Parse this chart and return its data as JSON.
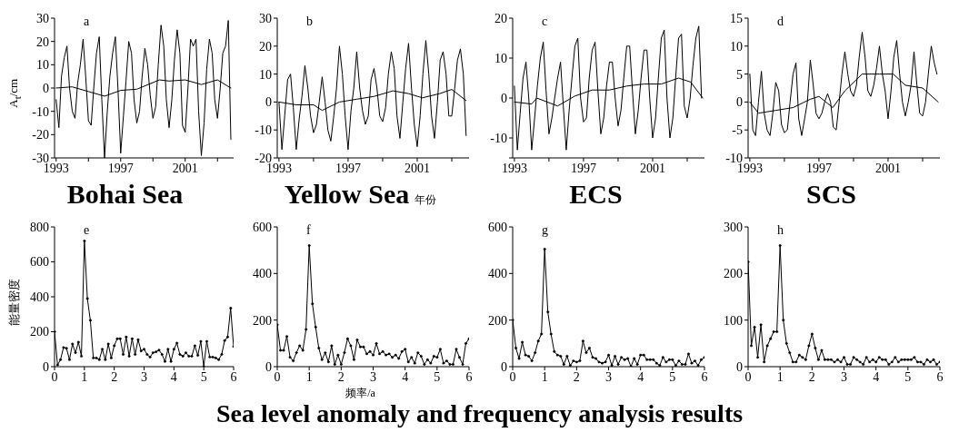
{
  "chart_data": [
    {
      "type": "line",
      "title": "Bohai Sea",
      "ylabel": "A$_{t}$/cm",
      "annotations": [
        "a"
      ],
      "marker": "none",
      "line_style": "solid",
      "grid": false,
      "xlim": [
        1992.9,
        2004.0
      ],
      "xticks": [
        1993,
        {
          "value": 1995,
          "label": null
        },
        1997,
        {
          "value": 1999,
          "label": null
        },
        2001,
        {
          "value": 2003,
          "label": null
        }
      ],
      "ylim": [
        -30,
        30
      ],
      "yticks": [
        -30,
        -20,
        -10,
        0,
        10,
        20,
        30
      ],
      "x": [
        1993.0,
        1993.17,
        1993.33,
        1993.5,
        1993.67,
        1993.83,
        1994.0,
        1994.17,
        1994.33,
        1994.5,
        1994.67,
        1994.83,
        1995.0,
        1995.17,
        1995.33,
        1995.5,
        1995.67,
        1995.83,
        1996.0,
        1996.17,
        1996.33,
        1996.5,
        1996.67,
        1996.83,
        1997.0,
        1997.17,
        1997.33,
        1997.5,
        1997.67,
        1997.83,
        1998.0,
        1998.17,
        1998.33,
        1998.5,
        1998.67,
        1998.83,
        1999.0,
        1999.17,
        1999.33,
        1999.5,
        1999.67,
        1999.83,
        2000.0,
        2000.17,
        2000.33,
        2000.5,
        2000.67,
        2000.83,
        2001.0,
        2001.17,
        2001.33,
        2001.5,
        2001.67,
        2001.83,
        2002.0,
        2002.17,
        2002.33,
        2002.5,
        2002.67,
        2002.83,
        2003.0,
        2003.17,
        2003.33,
        2003.5,
        2003.67,
        2003.83
      ],
      "series": [
        {
          "color": "#000000",
          "values": [
            -5,
            -17,
            5,
            13,
            18,
            0,
            -10,
            -13,
            2,
            10,
            21,
            5,
            -14,
            -16,
            0,
            15,
            22,
            -5,
            -30,
            -10,
            5,
            15,
            22,
            0,
            -28,
            -12,
            3,
            20,
            15,
            -5,
            -15,
            -10,
            5,
            17,
            10,
            -3,
            -13,
            -8,
            10,
            27,
            18,
            -5,
            -17,
            -5,
            12,
            25,
            15,
            -16,
            -19,
            0,
            21,
            18,
            21,
            -10,
            -29,
            -15,
            8,
            21,
            15,
            -5,
            -13,
            0,
            15,
            18,
            29,
            -22
          ]
        },
        {
          "type": "line",
          "color": "#000000",
          "x": [
            1993,
            1994,
            1995,
            1996,
            1997,
            1998,
            1999.4,
            2000,
            2001,
            2002,
            2003,
            2003.83
          ],
          "values": [
            0,
            0.5,
            -1.5,
            -3.5,
            -1,
            -0.5,
            3.5,
            3,
            3.5,
            1.5,
            3.5,
            0
          ]
        }
      ]
    },
    {
      "type": "line",
      "title": "Yellow Sea",
      "xlabel": "年份",
      "annotations": [
        "b"
      ],
      "marker": "none",
      "line_style": "solid",
      "grid": false,
      "xlim": [
        1992.9,
        2004.0
      ],
      "xticks": [
        1993,
        {
          "value": 1995,
          "label": null
        },
        1997,
        {
          "value": 1999,
          "label": null
        },
        2001,
        {
          "value": 2003,
          "label": null
        }
      ],
      "ylim": [
        -20,
        30
      ],
      "yticks": [
        -20,
        -10,
        0,
        10,
        20,
        30
      ],
      "x": [
        1993.0,
        1993.17,
        1993.33,
        1993.5,
        1993.67,
        1993.83,
        1994.0,
        1994.17,
        1994.33,
        1994.5,
        1994.67,
        1994.83,
        1995.0,
        1995.17,
        1995.33,
        1995.5,
        1995.67,
        1995.83,
        1996.0,
        1996.17,
        1996.33,
        1996.5,
        1996.67,
        1996.83,
        1997.0,
        1997.17,
        1997.33,
        1997.5,
        1997.67,
        1997.83,
        1998.0,
        1998.17,
        1998.33,
        1998.5,
        1998.67,
        1998.83,
        1999.0,
        1999.17,
        1999.33,
        1999.5,
        1999.67,
        1999.83,
        2000.0,
        2000.17,
        2000.33,
        2000.5,
        2000.67,
        2000.83,
        2001.0,
        2001.17,
        2001.33,
        2001.5,
        2001.67,
        2001.83,
        2002.0,
        2002.17,
        2002.33,
        2002.5,
        2002.67,
        2002.83,
        2003.0,
        2003.17,
        2003.33,
        2003.5,
        2003.67,
        2003.83
      ],
      "series": [
        {
          "color": "#000000",
          "values": [
            0,
            -17,
            -5,
            8,
            10,
            -2,
            -17,
            -6,
            2,
            13,
            5,
            -5,
            -11,
            -8,
            0,
            9,
            0,
            -10,
            -14,
            -5,
            5,
            20,
            10,
            -5,
            -17,
            -3,
            5,
            18,
            5,
            -3,
            -8,
            -5,
            8,
            12,
            5,
            -5,
            -7,
            -2,
            10,
            18,
            12,
            -5,
            -13,
            0,
            12,
            21,
            5,
            -8,
            -16,
            -5,
            10,
            22,
            10,
            -5,
            -13,
            0,
            15,
            18,
            10,
            -5,
            -5,
            5,
            15,
            19,
            10,
            -12
          ]
        },
        {
          "type": "line",
          "color": "#000000",
          "x": [
            1993,
            1994,
            1995,
            1995.5,
            1996.5,
            1997.5,
            1998.5,
            1999.6,
            2000.5,
            2001.3,
            2002.3,
            2003,
            2003.83
          ],
          "values": [
            0,
            -1,
            -1,
            -3,
            0,
            1,
            2,
            4,
            3,
            1.5,
            3,
            4.5,
            0.5
          ]
        }
      ]
    },
    {
      "type": "line",
      "title": "ECS",
      "annotations": [
        "c"
      ],
      "marker": "none",
      "line_style": "solid",
      "grid": false,
      "xlim": [
        1992.9,
        2004.0
      ],
      "xticks": [
        1993,
        {
          "value": 1995,
          "label": null
        },
        1997,
        {
          "value": 1999,
          "label": null
        },
        2001,
        {
          "value": 2003,
          "label": null
        }
      ],
      "ylim": [
        -15,
        20
      ],
      "yticks": [
        {
          "value": -15,
          "label": null
        },
        -10,
        0,
        10,
        20
      ],
      "x": [
        1993.0,
        1993.17,
        1993.33,
        1993.5,
        1993.67,
        1993.83,
        1994.0,
        1994.17,
        1994.33,
        1994.5,
        1994.67,
        1994.83,
        1995.0,
        1995.17,
        1995.33,
        1995.5,
        1995.67,
        1995.83,
        1996.0,
        1996.17,
        1996.33,
        1996.5,
        1996.67,
        1996.83,
        1997.0,
        1997.17,
        1997.33,
        1997.5,
        1997.67,
        1997.83,
        1998.0,
        1998.17,
        1998.33,
        1998.5,
        1998.67,
        1998.83,
        1999.0,
        1999.17,
        1999.33,
        1999.5,
        1999.67,
        1999.83,
        2000.0,
        2000.17,
        2000.33,
        2000.5,
        2000.67,
        2000.83,
        2001.0,
        2001.17,
        2001.33,
        2001.5,
        2001.67,
        2001.83,
        2002.0,
        2002.17,
        2002.33,
        2002.5,
        2002.67,
        2002.83,
        2003.0,
        2003.17,
        2003.33,
        2003.5,
        2003.67,
        2003.83
      ],
      "series": [
        {
          "color": "#000000",
          "values": [
            3,
            -13,
            -4,
            5,
            9,
            0,
            -13,
            -5,
            3,
            10,
            14,
            2,
            -9,
            -5,
            0,
            5,
            9,
            -2,
            -13,
            -3,
            5,
            13,
            15,
            0,
            -6,
            -5,
            5,
            12,
            14,
            2,
            -9,
            -5,
            3,
            9,
            9,
            0,
            -7,
            -3,
            5,
            13,
            13,
            2,
            -9,
            -3,
            5,
            12,
            12,
            0,
            -10,
            -5,
            5,
            15,
            17,
            0,
            -10,
            -5,
            5,
            15,
            16,
            -2,
            -5,
            0,
            8,
            15,
            18,
            0
          ]
        },
        {
          "type": "line",
          "color": "#000000",
          "x": [
            1993,
            1994,
            1994.3,
            1995.5,
            1996.5,
            1997.5,
            1998.5,
            1999.5,
            2000.5,
            2001.5,
            2002.5,
            2003.2,
            2003.9
          ],
          "values": [
            -1,
            -1.5,
            0,
            -2,
            0.5,
            2,
            2,
            3,
            3.5,
            3.5,
            5,
            4,
            0
          ]
        }
      ]
    },
    {
      "type": "line",
      "title": "SCS",
      "annotations": [
        "d"
      ],
      "marker": "none",
      "line_style": "solid",
      "grid": false,
      "xlim": [
        1992.9,
        2004.0
      ],
      "xticks": [
        1993,
        {
          "value": 1995,
          "label": null
        },
        1997,
        {
          "value": 1999,
          "label": null
        },
        2001,
        {
          "value": 2003,
          "label": null
        }
      ],
      "ylim": [
        -10,
        15
      ],
      "yticks": [
        -10,
        -5,
        0,
        5,
        10,
        15
      ],
      "x": [
        1993.0,
        1993.17,
        1993.33,
        1993.5,
        1993.67,
        1993.83,
        1994.0,
        1994.17,
        1994.33,
        1994.5,
        1994.67,
        1994.83,
        1995.0,
        1995.17,
        1995.33,
        1995.5,
        1995.67,
        1995.83,
        1996.0,
        1996.17,
        1996.33,
        1996.5,
        1996.67,
        1996.83,
        1997.0,
        1997.17,
        1997.33,
        1997.5,
        1997.67,
        1997.83,
        1998.0,
        1998.17,
        1998.33,
        1998.5,
        1998.67,
        1998.83,
        1999.0,
        1999.17,
        1999.33,
        1999.5,
        1999.67,
        1999.83,
        2000.0,
        2000.17,
        2000.33,
        2000.5,
        2000.67,
        2000.83,
        2001.0,
        2001.17,
        2001.33,
        2001.5,
        2001.67,
        2001.83,
        2002.0,
        2002.17,
        2002.33,
        2002.5,
        2002.67,
        2002.83,
        2003.0,
        2003.17,
        2003.33,
        2003.5,
        2003.67,
        2003.83
      ],
      "series": [
        {
          "color": "#000000",
          "values": [
            5,
            -5,
            -6,
            0,
            5.5,
            -2,
            -5,
            -6,
            -2,
            3.5,
            2,
            -4,
            -5.5,
            -5,
            0,
            5,
            7,
            -3,
            -6,
            -3,
            0,
            7.5,
            3,
            -2,
            -3,
            -2,
            0,
            1.5,
            0,
            -4.5,
            -5,
            0,
            5,
            9,
            5,
            2,
            1,
            3,
            8,
            12.5,
            8,
            2,
            1,
            3,
            6,
            10,
            5,
            2,
            -3,
            2,
            8,
            11,
            5,
            0,
            -2.5,
            0,
            3,
            9,
            3,
            -2,
            -2.5,
            0,
            5,
            10,
            7,
            5
          ]
        },
        {
          "type": "line",
          "color": "#000000",
          "x": [
            1993,
            1993.5,
            1994.5,
            1995.5,
            1996.5,
            1997,
            1997.8,
            1998.5,
            1999.5,
            2000.5,
            2001.3,
            2002,
            2003,
            2003.9
          ],
          "values": [
            0,
            -2,
            -1.5,
            -1,
            0.5,
            1,
            -1,
            2,
            5,
            5,
            5,
            3,
            2.5,
            0
          ]
        }
      ]
    },
    {
      "type": "line",
      "ylabel": "能量密度",
      "annotations": [
        "e",
        "Sea level anomaly and frequency analysis results"
      ],
      "marker": "circle",
      "line_style": "solid",
      "grid": false,
      "xlim": [
        0,
        6
      ],
      "xticks": [
        0,
        1,
        2,
        3,
        4,
        5,
        6
      ],
      "ylim": [
        0,
        800
      ],
      "yticks": [
        0,
        200,
        400,
        600,
        800
      ],
      "x": [
        0,
        0.1,
        0.2,
        0.3,
        0.4,
        0.5,
        0.6,
        0.7,
        0.8,
        0.9,
        1,
        1.1,
        1.2,
        1.3,
        1.4,
        1.5,
        1.6,
        1.7,
        1.8,
        1.9,
        2,
        2.1,
        2.2,
        2.3,
        2.4,
        2.5,
        2.6,
        2.7,
        2.8,
        2.9,
        3,
        3.1,
        3.2,
        3.3,
        3.4,
        3.5,
        3.6,
        3.7,
        3.8,
        3.9,
        4,
        4.1,
        4.2,
        4.3,
        4.4,
        4.5,
        4.6,
        4.7,
        4.8,
        4.9,
        5,
        5.1,
        5.2,
        5.3,
        5.4,
        5.5,
        5.6,
        5.7,
        5.8,
        5.9,
        6
      ],
      "series": [
        {
          "color": "#000000",
          "values": [
            200,
            10,
            40,
            110,
            105,
            40,
            130,
            80,
            140,
            60,
            720,
            390,
            265,
            50,
            50,
            40,
            100,
            40,
            130,
            50,
            120,
            160,
            160,
            70,
            170,
            60,
            160,
            70,
            155,
            90,
            100,
            70,
            55,
            80,
            85,
            95,
            70,
            30,
            100,
            30,
            100,
            135,
            70,
            60,
            80,
            60,
            60,
            120,
            65,
            145,
            0,
            145,
            55,
            55,
            50,
            40,
            70,
            150,
            170,
            335,
            115
          ]
        }
      ]
    },
    {
      "type": "line",
      "xlabel": "频率/a",
      "annotations": [
        "f"
      ],
      "marker": "circle",
      "line_style": "solid",
      "grid": false,
      "xlim": [
        0,
        6
      ],
      "xticks": [
        0,
        1,
        2,
        3,
        4,
        5,
        6
      ],
      "ylim": [
        0,
        600
      ],
      "yticks": [
        0,
        200,
        400,
        600
      ],
      "x": [
        0,
        0.1,
        0.2,
        0.3,
        0.4,
        0.5,
        0.6,
        0.7,
        0.8,
        0.9,
        1,
        1.1,
        1.2,
        1.3,
        1.4,
        1.5,
        1.6,
        1.7,
        1.8,
        1.9,
        2,
        2.1,
        2.2,
        2.3,
        2.4,
        2.5,
        2.6,
        2.7,
        2.8,
        2.9,
        3,
        3.1,
        3.2,
        3.3,
        3.4,
        3.5,
        3.6,
        3.7,
        3.8,
        3.9,
        4,
        4.1,
        4.2,
        4.3,
        4.4,
        4.5,
        4.6,
        4.7,
        4.8,
        4.9,
        5,
        5.1,
        5.2,
        5.3,
        5.4,
        5.5,
        5.6,
        5.7,
        5.8,
        5.9,
        6
      ],
      "series": [
        {
          "color": "#000000",
          "values": [
            180,
            70,
            70,
            130,
            40,
            25,
            60,
            90,
            70,
            160,
            520,
            270,
            170,
            80,
            30,
            60,
            20,
            90,
            10,
            50,
            10,
            60,
            120,
            90,
            30,
            115,
            85,
            85,
            55,
            65,
            50,
            100,
            55,
            65,
            50,
            55,
            40,
            50,
            35,
            65,
            75,
            20,
            40,
            15,
            60,
            45,
            10,
            30,
            15,
            45,
            40,
            75,
            15,
            25,
            10,
            10,
            75,
            40,
            10,
            100,
            120
          ]
        }
      ]
    },
    {
      "type": "line",
      "annotations": [
        "g"
      ],
      "marker": "circle",
      "line_style": "solid",
      "grid": false,
      "xlim": [
        0,
        6
      ],
      "xticks": [
        0,
        1,
        2,
        3,
        4,
        5,
        6
      ],
      "ylim": [
        0,
        600
      ],
      "yticks": [
        0,
        200,
        400,
        600
      ],
      "x": [
        0,
        0.1,
        0.2,
        0.3,
        0.4,
        0.5,
        0.6,
        0.7,
        0.8,
        0.9,
        1,
        1.1,
        1.2,
        1.3,
        1.4,
        1.5,
        1.6,
        1.7,
        1.8,
        1.9,
        2,
        2.1,
        2.2,
        2.3,
        2.4,
        2.5,
        2.6,
        2.7,
        2.8,
        2.9,
        3,
        3.1,
        3.2,
        3.3,
        3.4,
        3.5,
        3.6,
        3.7,
        3.8,
        3.9,
        4,
        4.1,
        4.2,
        4.3,
        4.4,
        4.5,
        4.6,
        4.7,
        4.8,
        4.9,
        5,
        5.1,
        5.2,
        5.3,
        5.4,
        5.5,
        5.6,
        5.7,
        5.8,
        5.9,
        6
      ],
      "series": [
        {
          "color": "#000000",
          "values": [
            200,
            80,
            35,
            105,
            50,
            45,
            25,
            60,
            110,
            140,
            505,
            235,
            140,
            65,
            50,
            45,
            10,
            45,
            5,
            25,
            20,
            25,
            110,
            60,
            80,
            40,
            35,
            20,
            15,
            20,
            50,
            5,
            45,
            10,
            40,
            30,
            35,
            0,
            35,
            10,
            50,
            50,
            30,
            30,
            30,
            15,
            5,
            40,
            20,
            30,
            30,
            5,
            25,
            10,
            10,
            55,
            15,
            25,
            5,
            30,
            40
          ]
        }
      ]
    },
    {
      "type": "line",
      "annotations": [
        "h"
      ],
      "marker": "circle",
      "line_style": "solid",
      "grid": false,
      "xlim": [
        0,
        6
      ],
      "xticks": [
        0,
        1,
        2,
        3,
        4,
        5,
        6
      ],
      "ylim": [
        0,
        300
      ],
      "yticks": [
        0,
        100,
        200,
        300
      ],
      "x": [
        0,
        0.1,
        0.2,
        0.3,
        0.4,
        0.5,
        0.6,
        0.7,
        0.8,
        0.9,
        1,
        1.1,
        1.2,
        1.3,
        1.4,
        1.5,
        1.6,
        1.7,
        1.8,
        1.9,
        2,
        2.1,
        2.2,
        2.3,
        2.4,
        2.5,
        2.6,
        2.7,
        2.8,
        2.9,
        3,
        3.1,
        3.2,
        3.3,
        3.4,
        3.5,
        3.6,
        3.7,
        3.8,
        3.9,
        4,
        4.1,
        4.2,
        4.3,
        4.4,
        4.5,
        4.6,
        4.7,
        4.8,
        4.9,
        5,
        5.1,
        5.2,
        5.3,
        5.4,
        5.5,
        5.6,
        5.7,
        5.8,
        5.9,
        6
      ],
      "series": [
        {
          "color": "#000000",
          "values": [
            225,
            45,
            85,
            20,
            90,
            10,
            45,
            60,
            75,
            75,
            260,
            100,
            50,
            30,
            10,
            10,
            25,
            20,
            15,
            45,
            70,
            40,
            15,
            35,
            15,
            15,
            15,
            10,
            15,
            10,
            20,
            5,
            5,
            20,
            15,
            10,
            5,
            20,
            10,
            15,
            10,
            20,
            15,
            15,
            5,
            10,
            20,
            10,
            15,
            15,
            15,
            15,
            20,
            10,
            10,
            5,
            15,
            10,
            15,
            5,
            10
          ]
        }
      ]
    }
  ]
}
